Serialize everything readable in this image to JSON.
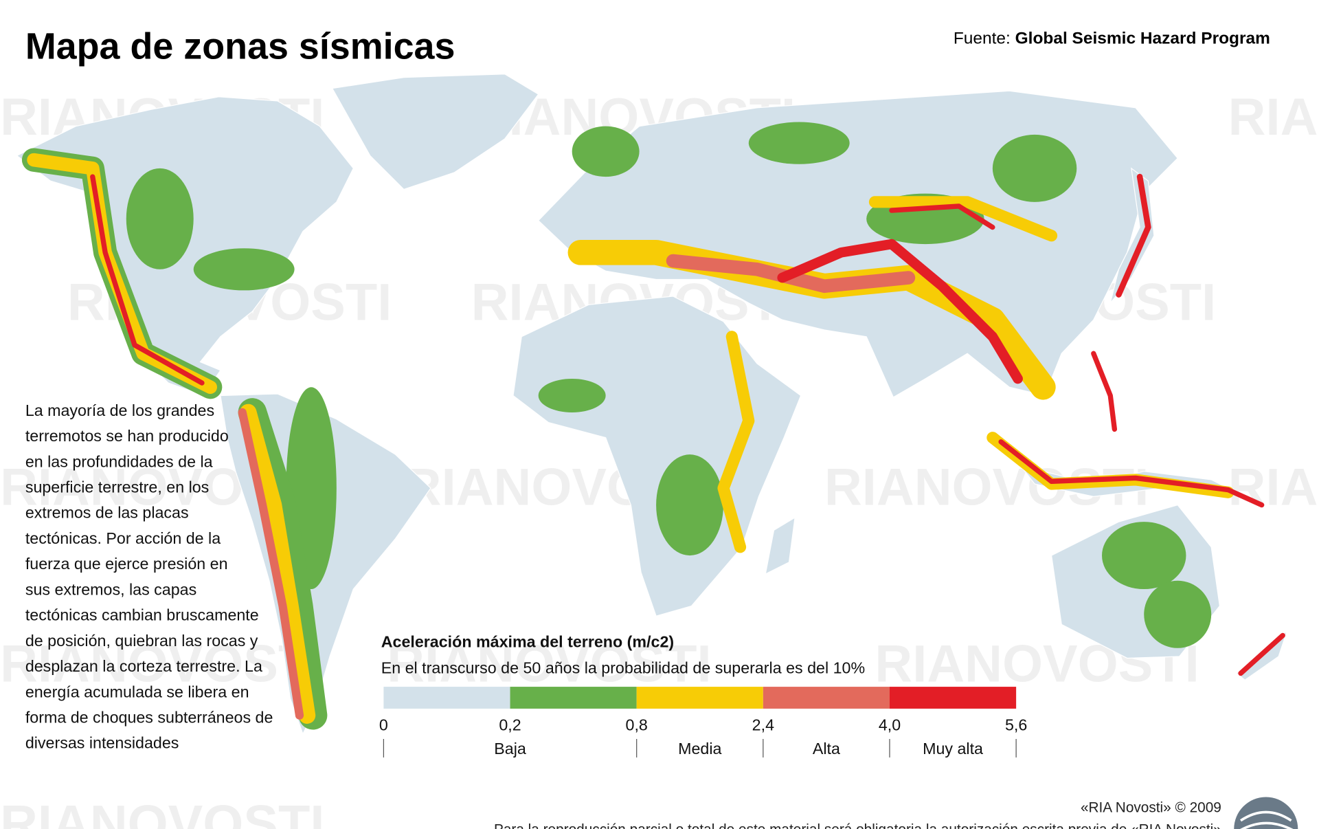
{
  "header": {
    "title": "Mapa de zonas sísmicas",
    "source_prefix": "Fuente: ",
    "source": "Global Seismic Hazard Program"
  },
  "watermark": "RIANOVOSTI",
  "description": [
    "La mayoría de los grandes",
    "terremotos se han producido",
    "en las profundidades de la",
    "superficie terrestre, en los",
    "extremos de las placas",
    "tectónicas. Por acción de la",
    "fuerza que ejerce presión en",
    "sus extremos, las capas",
    "tectónicas cambian bruscamente",
    "de posición, quiebran las rocas y",
    "desplazan la corteza terrestre. La",
    "energía acumulada se libera en",
    "forma de choques subterráneos de",
    "diversas intensidades"
  ],
  "legend": {
    "title": "Aceleración máxima del terreno (m/c2)",
    "subtitle": "En el transcurso de 50 años la probabilidad de superarla es del 10%",
    "colors": [
      "#d3e1ea",
      "#67b04a",
      "#f7cc06",
      "#e36a5c",
      "#e31e26"
    ],
    "stops": [
      "0",
      "0,2",
      "0,8",
      "2,4",
      "4,0",
      "5,6"
    ],
    "classes": [
      "Baja",
      "Media",
      "Alta",
      "Muy alta"
    ]
  },
  "footer": {
    "credit": "«RIA Novosti» © 2009",
    "note": "Para la reproducción parcial o total de este material será obligatoria la autorización escrita previa de «RIA Novosti»"
  }
}
